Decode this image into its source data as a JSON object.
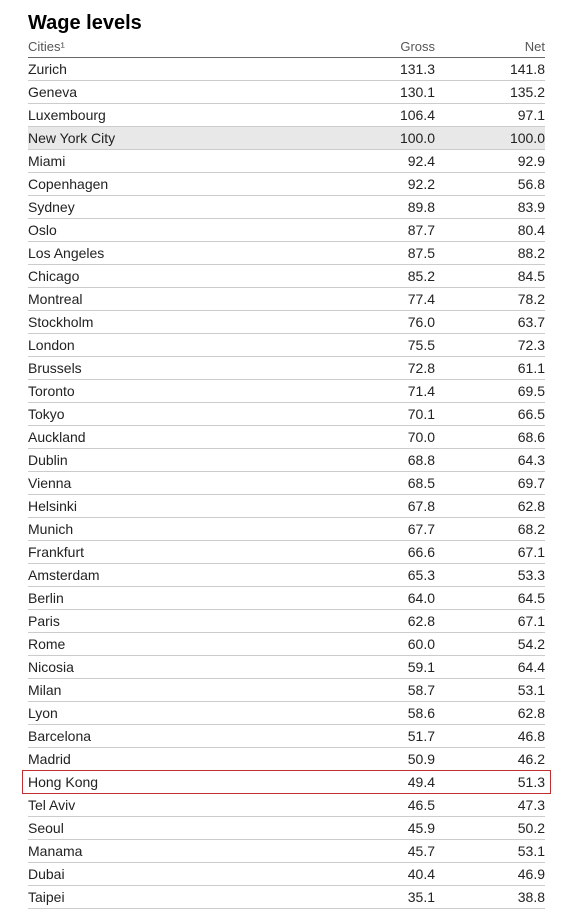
{
  "title": "Wage levels",
  "columns": {
    "city": "Cities¹",
    "gross": "Gross",
    "net": "Net"
  },
  "highlight_bg_color": "#e8e8e8",
  "box_border_color": "#c03030",
  "rows": [
    {
      "city": "Zurich",
      "gross": "131.3",
      "net": "141.8"
    },
    {
      "city": "Geneva",
      "gross": "130.1",
      "net": "135.2"
    },
    {
      "city": "Luxembourg",
      "gross": "106.4",
      "net": "97.1"
    },
    {
      "city": "New York City",
      "gross": "100.0",
      "net": "100.0",
      "highlighted": true
    },
    {
      "city": "Miami",
      "gross": "92.4",
      "net": "92.9"
    },
    {
      "city": "Copenhagen",
      "gross": "92.2",
      "net": "56.8"
    },
    {
      "city": "Sydney",
      "gross": "89.8",
      "net": "83.9"
    },
    {
      "city": "Oslo",
      "gross": "87.7",
      "net": "80.4"
    },
    {
      "city": "Los Angeles",
      "gross": "87.5",
      "net": "88.2"
    },
    {
      "city": "Chicago",
      "gross": "85.2",
      "net": "84.5"
    },
    {
      "city": "Montreal",
      "gross": "77.4",
      "net": "78.2"
    },
    {
      "city": "Stockholm",
      "gross": "76.0",
      "net": "63.7"
    },
    {
      "city": "London",
      "gross": "75.5",
      "net": "72.3"
    },
    {
      "city": "Brussels",
      "gross": "72.8",
      "net": "61.1"
    },
    {
      "city": "Toronto",
      "gross": "71.4",
      "net": "69.5"
    },
    {
      "city": "Tokyo",
      "gross": "70.1",
      "net": "66.5"
    },
    {
      "city": "Auckland",
      "gross": "70.0",
      "net": "68.6"
    },
    {
      "city": "Dublin",
      "gross": "68.8",
      "net": "64.3"
    },
    {
      "city": "Vienna",
      "gross": "68.5",
      "net": "69.7"
    },
    {
      "city": "Helsinki",
      "gross": "67.8",
      "net": "62.8"
    },
    {
      "city": "Munich",
      "gross": "67.7",
      "net": "68.2"
    },
    {
      "city": "Frankfurt",
      "gross": "66.6",
      "net": "67.1"
    },
    {
      "city": "Amsterdam",
      "gross": "65.3",
      "net": "53.3"
    },
    {
      "city": "Berlin",
      "gross": "64.0",
      "net": "64.5"
    },
    {
      "city": "Paris",
      "gross": "62.8",
      "net": "67.1"
    },
    {
      "city": "Rome",
      "gross": "60.0",
      "net": "54.2"
    },
    {
      "city": "Nicosia",
      "gross": "59.1",
      "net": "64.4"
    },
    {
      "city": "Milan",
      "gross": "58.7",
      "net": "53.1"
    },
    {
      "city": "Lyon",
      "gross": "58.6",
      "net": "62.8"
    },
    {
      "city": "Barcelona",
      "gross": "51.7",
      "net": "46.8"
    },
    {
      "city": "Madrid",
      "gross": "50.9",
      "net": "46.2"
    },
    {
      "city": "Hong Kong",
      "gross": "49.4",
      "net": "51.3",
      "boxed": true
    },
    {
      "city": "Tel Aviv",
      "gross": "46.5",
      "net": "47.3"
    },
    {
      "city": "Seoul",
      "gross": "45.9",
      "net": "50.2"
    },
    {
      "city": "Manama",
      "gross": "45.7",
      "net": "53.1"
    },
    {
      "city": "Dubai",
      "gross": "40.4",
      "net": "46.9"
    },
    {
      "city": "Taipei",
      "gross": "35.1",
      "net": "38.8"
    }
  ]
}
